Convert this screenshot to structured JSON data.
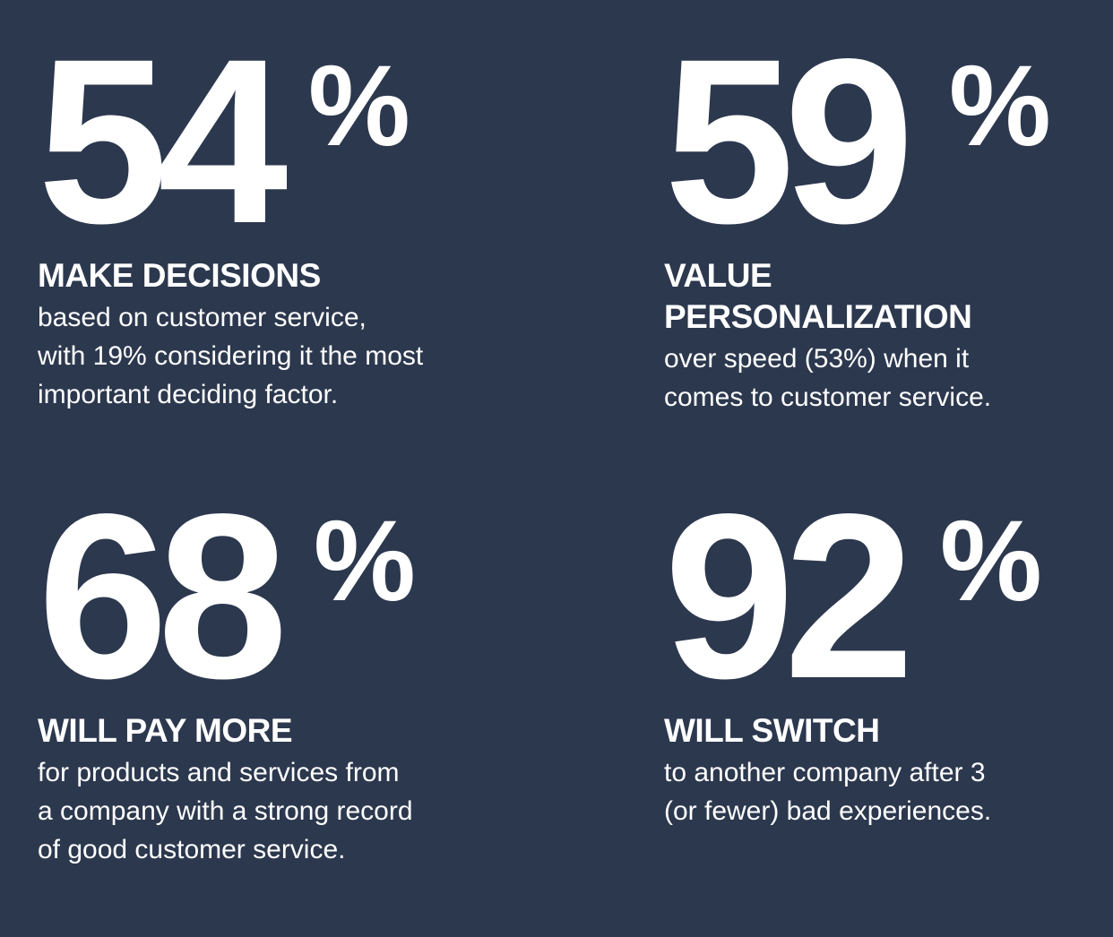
{
  "stats": [
    {
      "number": "54",
      "percent_sign": "%",
      "headline": [
        "MAKE DECISIONS"
      ],
      "description": [
        "based on customer service,",
        "with 19% considering it the most",
        "important deciding factor."
      ]
    },
    {
      "number": "59",
      "percent_sign": "%",
      "headline": [
        "VALUE",
        "PERSONALIZATION"
      ],
      "description": [
        "over speed (53%) when it",
        "comes to customer service."
      ]
    },
    {
      "number": "68",
      "percent_sign": "%",
      "headline": [
        "WILL PAY MORE"
      ],
      "description": [
        "for products and services from",
        "a company with a strong record",
        "of good customer service."
      ]
    },
    {
      "number": "92",
      "percent_sign": "%",
      "headline": [
        "WILL SWITCH"
      ],
      "description": [
        "to another company after 3",
        "(or fewer) bad experiences."
      ]
    }
  ],
  "colors": {
    "background": "#2c384e",
    "text": "#ffffff"
  }
}
